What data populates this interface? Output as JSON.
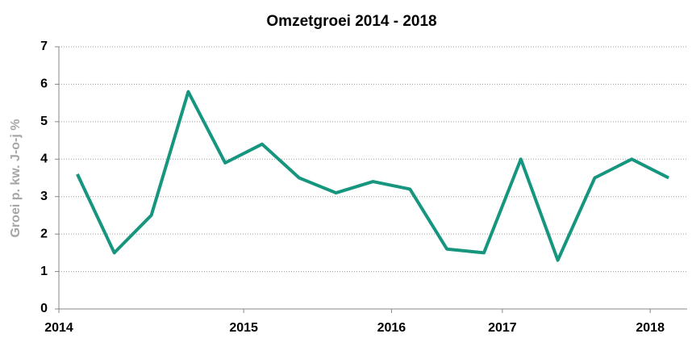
{
  "chart_data": {
    "type": "line",
    "title": "Omzetgroei 2014 - 2018",
    "y_label": "Groei p. kw. J-o-j %",
    "categories": [
      "2014",
      null,
      null,
      null,
      null,
      "2015",
      null,
      null,
      null,
      "2016",
      null,
      null,
      "2017",
      null,
      null,
      null,
      "2018"
    ],
    "series": [
      {
        "name": "Omzetgroei",
        "color": "#16957f",
        "values": [
          3.6,
          1.5,
          2.5,
          5.8,
          3.9,
          4.4,
          3.5,
          3.1,
          3.4,
          3.2,
          1.6,
          1.5,
          4.0,
          1.3,
          3.5,
          4.0,
          3.5
        ]
      }
    ],
    "ylim": [
      0,
      7
    ],
    "yticks": [
      0,
      1,
      2,
      3,
      4,
      5,
      6,
      7
    ],
    "grid": true
  }
}
